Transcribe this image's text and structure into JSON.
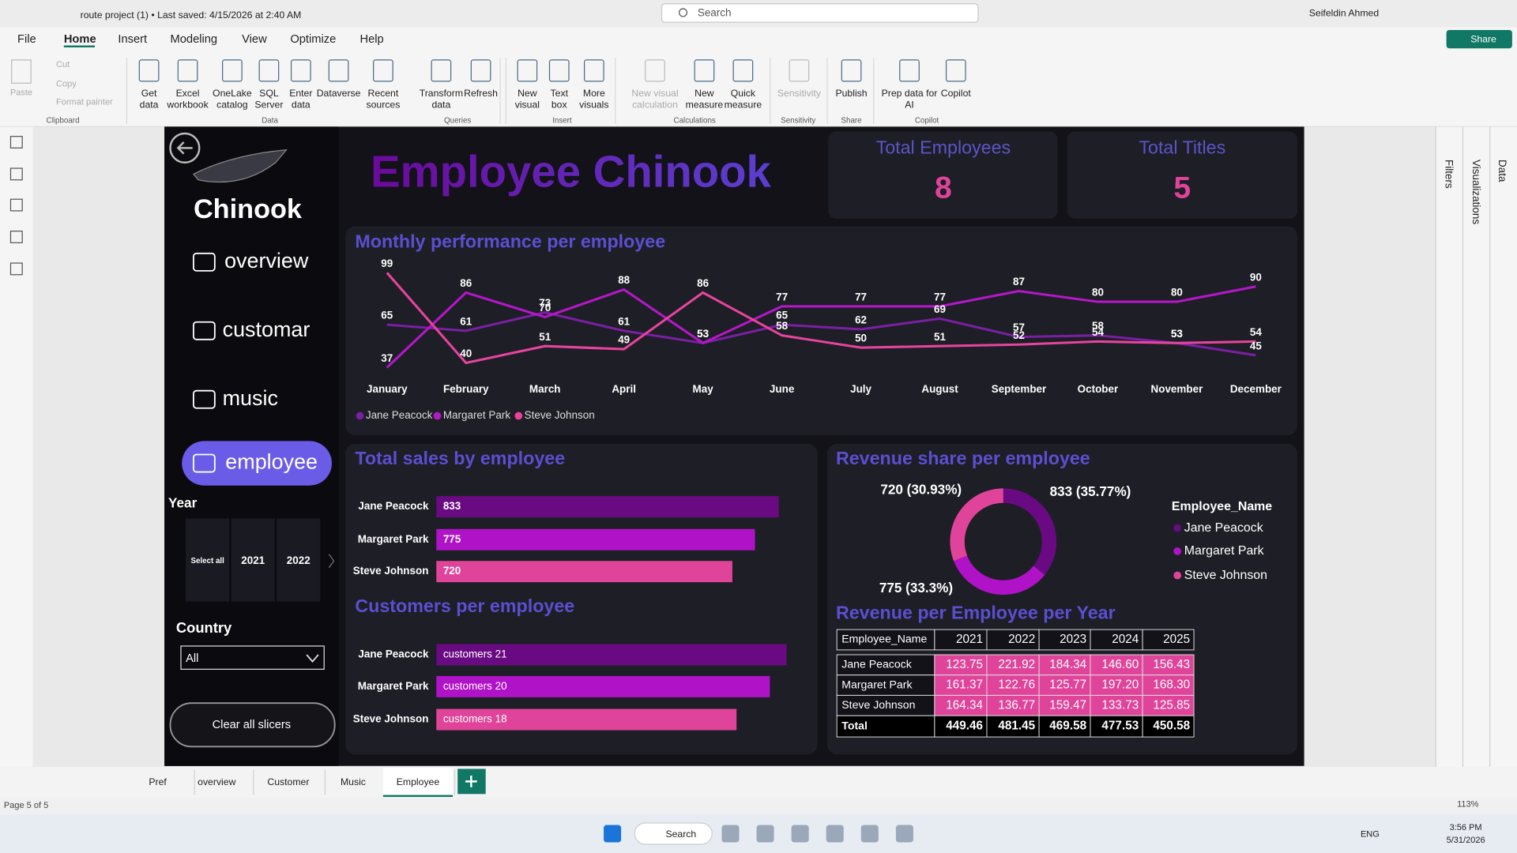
{
  "window": {
    "title": "route project (1) • Last saved: 4/15/2026 at 2:40 AM",
    "search": "Search",
    "user": "Seifeldin Ahmed"
  },
  "menu": {
    "tabs": [
      "File",
      "Home",
      "Insert",
      "Modeling",
      "View",
      "Optimize",
      "Help"
    ],
    "share": "Share"
  },
  "ribbon": {
    "clipboard": [
      "Paste",
      "Cut",
      "Copy",
      "Format painter"
    ],
    "buttons": [
      {
        "lines": [
          "Get",
          "data"
        ]
      },
      {
        "lines": [
          "Excel",
          "workbook"
        ]
      },
      {
        "lines": [
          "OneLake",
          "catalog"
        ]
      },
      {
        "lines": [
          "SQL",
          "Server"
        ]
      },
      {
        "lines": [
          "Enter",
          "data"
        ]
      },
      {
        "lines": [
          "Dataverse"
        ]
      },
      {
        "lines": [
          "Recent",
          "sources"
        ]
      },
      {
        "lines": [
          "Transform",
          "data"
        ]
      },
      {
        "lines": [
          "Refresh"
        ]
      },
      {
        "lines": [
          "New",
          "visual"
        ]
      },
      {
        "lines": [
          "Text",
          "box"
        ]
      },
      {
        "lines": [
          "More",
          "visuals"
        ]
      },
      {
        "lines": [
          "New visual",
          "calculation"
        ]
      },
      {
        "lines": [
          "New",
          "measure"
        ]
      },
      {
        "lines": [
          "Quick",
          "measure"
        ]
      },
      {
        "lines": [
          "Sensitivity"
        ]
      },
      {
        "lines": [
          "Publish"
        ]
      },
      {
        "lines": [
          "Prep data for",
          "AI"
        ]
      },
      {
        "lines": [
          "Copilot"
        ]
      }
    ],
    "groups": [
      "Clipboard",
      "Data",
      "Queries",
      "Insert",
      "Calculations",
      "Sensitivity",
      "Share",
      "Copilot"
    ]
  },
  "side_panes": [
    "Filters",
    "Visualizations",
    "Data"
  ],
  "page_tabs": [
    "Pref",
    "overview",
    "Customer",
    "Music",
    "Employee"
  ],
  "status": {
    "page": "Page 5 of 5",
    "zoom": "113%"
  },
  "taskbar": {
    "search": "Search",
    "language": "ENG",
    "time": "3:56 PM",
    "date": "5/31/2026"
  },
  "report": {
    "logo": "Chinook",
    "title": "Employee Chinook",
    "nav": [
      "overview",
      "customar",
      "music",
      "employee"
    ],
    "year_slicer": {
      "label": "Year",
      "items": [
        "Select all",
        "2021",
        "2022"
      ]
    },
    "country_slicer": {
      "label": "Country",
      "value": "All"
    },
    "clear_button": "Clear all slicers",
    "cards": [
      {
        "label": "Total Employees",
        "value": 8
      },
      {
        "label": "Total Titles",
        "value": 5
      }
    ],
    "table": {
      "title": "Revenue per Employee per Year",
      "columns": [
        "Employee_Name",
        "2021",
        "2022",
        "2023",
        "2024",
        "2025"
      ],
      "rows": [
        [
          "Jane Peacock",
          "123.75",
          "221.92",
          "184.34",
          "146.60",
          "156.43"
        ],
        [
          "Margaret Park",
          "161.37",
          "122.76",
          "125.77",
          "197.20",
          "168.30"
        ],
        [
          "Steve Johnson",
          "164.34",
          "136.77",
          "159.47",
          "133.73",
          "125.85"
        ]
      ],
      "total": [
        "Total",
        "449.46",
        "481.45",
        "469.58",
        "477.53",
        "450.58"
      ]
    }
  },
  "chart_data": [
    {
      "type": "line",
      "title": "Monthly performance per employee",
      "categories": [
        "January",
        "February",
        "March",
        "April",
        "May",
        "June",
        "July",
        "August",
        "September",
        "October",
        "November",
        "December"
      ],
      "series": [
        {
          "name": "Jane Peacock",
          "color": "#7a1fa2",
          "values": [
            65,
            61,
            73,
            61,
            53,
            65,
            62,
            69,
            57,
            58,
            53,
            45
          ]
        },
        {
          "name": "Margaret Park",
          "color": "#b517c9",
          "values": [
            37,
            86,
            70,
            88,
            53,
            77,
            77,
            77,
            87,
            80,
            80,
            90
          ]
        },
        {
          "name": "Steve Johnson",
          "color": "#e6449e",
          "values": [
            99,
            40,
            51,
            49,
            86,
            58,
            50,
            51,
            52,
            54,
            53,
            54
          ]
        }
      ]
    },
    {
      "type": "bar",
      "orientation": "horizontal",
      "title": "Total sales by employee",
      "categories": [
        "Jane Peacock",
        "Margaret Park",
        "Steve Johnson"
      ],
      "values": [
        833,
        775,
        720
      ],
      "colors": [
        "#6a0a82",
        "#b012c8",
        "#e0449a"
      ]
    },
    {
      "type": "bar",
      "orientation": "horizontal",
      "title": "Customers per employee",
      "categories": [
        "Jane Peacock",
        "Margaret Park",
        "Steve Johnson"
      ],
      "values": [
        21,
        20,
        18
      ],
      "value_labels": [
        "customers 21",
        "customers 20",
        "customers 18"
      ],
      "colors": [
        "#6a0a82",
        "#b012c8",
        "#e0449a"
      ]
    },
    {
      "type": "pie",
      "title": "Revenue share per employee",
      "legend_title": "Employee_Name",
      "categories": [
        "Jane Peacock",
        "Margaret Park",
        "Steve Johnson"
      ],
      "values": [
        833,
        775,
        720
      ],
      "value_labels": [
        "833 (35.77%)",
        "775 (33.3%)",
        "720 (30.93%)"
      ],
      "colors": [
        "#6a0a82",
        "#b012c8",
        "#e0449a"
      ]
    }
  ]
}
